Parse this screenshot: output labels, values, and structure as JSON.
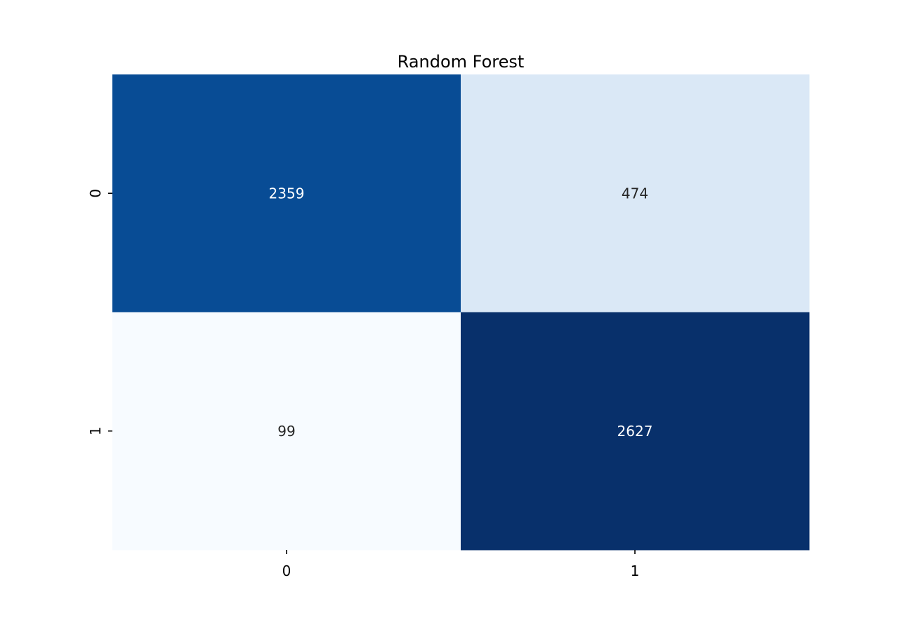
{
  "chart_data": {
    "type": "heatmap",
    "title": "Random Forest",
    "xlabel": "",
    "ylabel": "",
    "x_categories": [
      "0",
      "1"
    ],
    "y_categories": [
      "0",
      "1"
    ],
    "values": [
      [
        2359,
        474
      ],
      [
        99,
        2627
      ]
    ],
    "colormap": "Blues",
    "annotations": true,
    "colorbar": false,
    "colors": {
      "darkest": "#08306b",
      "lightest": "#f7fbff",
      "dark_text": "#262626",
      "light_text": "#ffffff"
    }
  }
}
